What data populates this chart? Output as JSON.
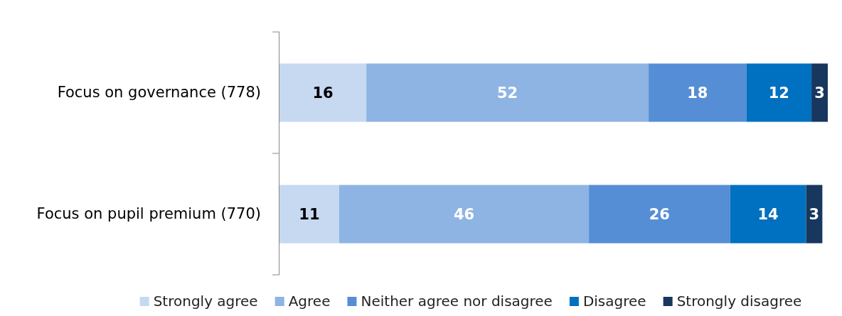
{
  "chart_data": {
    "type": "bar",
    "orientation": "horizontal",
    "stacked": true,
    "data_labels": true,
    "legend": "bottom",
    "categories": [
      "Focus on governance (778)",
      "Focus on pupil premium (770)"
    ],
    "series": [
      {
        "name": "Strongly agree",
        "color": "#c6d9f1",
        "values": [
          16,
          11
        ]
      },
      {
        "name": "Agree",
        "color": "#8eb4e3",
        "values": [
          52,
          46
        ]
      },
      {
        "name": "Neither agree nor disagree",
        "color": "#558ed5",
        "values": [
          18,
          26
        ]
      },
      {
        "name": "Disagree",
        "color": "#0070c0",
        "values": [
          12,
          14
        ]
      },
      {
        "name": "Strongly disagree",
        "color": "#17375e",
        "values": [
          3,
          3
        ]
      }
    ]
  }
}
